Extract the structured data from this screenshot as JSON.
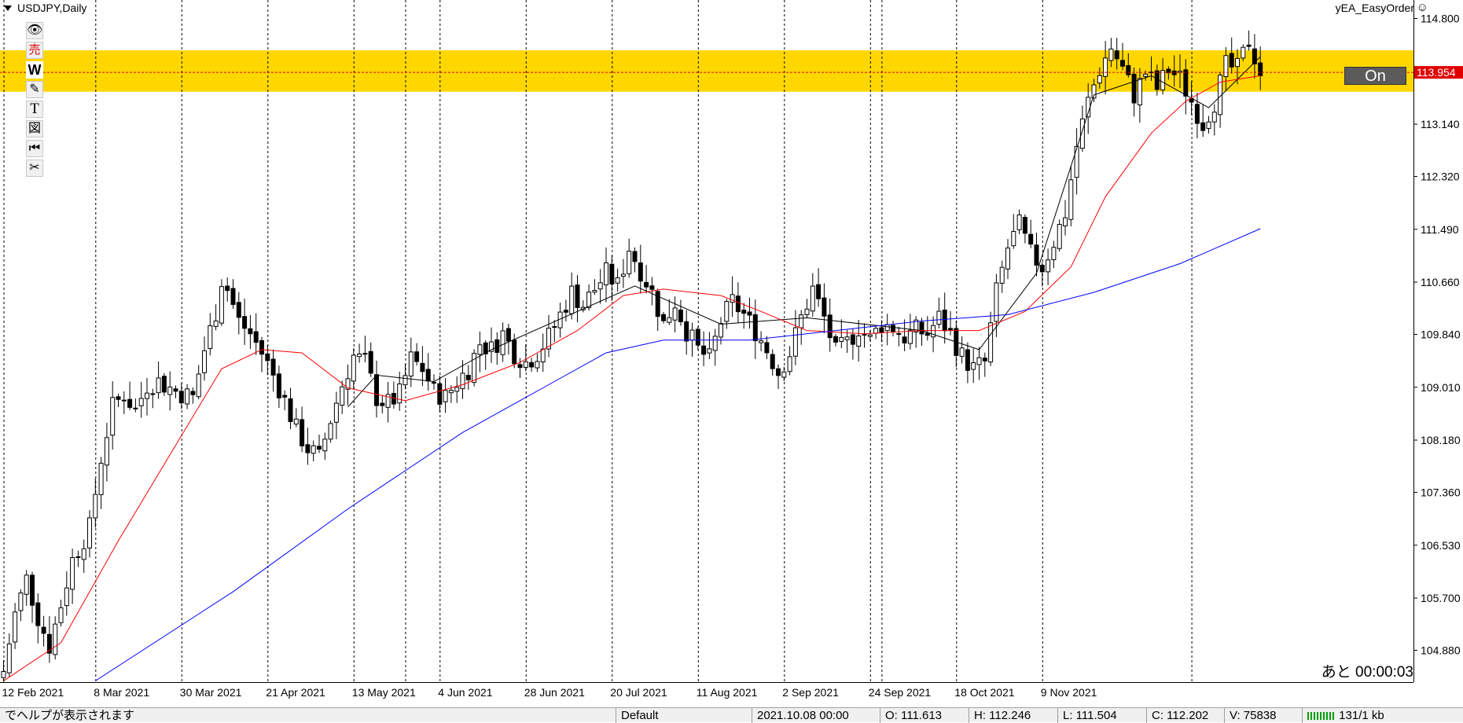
{
  "window": {
    "title": "USDJPY,Daily",
    "ea_name": "yEA_EasyOrder",
    "ea_icon": "smiley-icon",
    "on_button_label": "On",
    "countdown": "あと 00:00:03",
    "current_price_label": "113.954"
  },
  "toolbar": {
    "items": [
      {
        "name": "eye-icon",
        "glyph": "👁"
      },
      {
        "name": "sell-icon",
        "glyph": "売"
      },
      {
        "name": "w-icon",
        "glyph": "W"
      },
      {
        "name": "pencil-icon",
        "glyph": "✎"
      },
      {
        "name": "text-icon",
        "glyph": "T"
      },
      {
        "name": "picture-icon",
        "glyph": "図"
      },
      {
        "name": "rewind-icon",
        "glyph": "⏮"
      },
      {
        "name": "scissors-icon",
        "glyph": "✂"
      }
    ]
  },
  "status_bar": {
    "help_text": "でヘルプが表示されます",
    "profile": "Default",
    "datetime": "2021.10.08 00:00",
    "open": "O: 111.613",
    "high": "H: 112.246",
    "low": "L: 111.504",
    "close": "C: 112.202",
    "volume": "V: 75838",
    "traffic": "131/1 kb"
  },
  "colors": {
    "zone": "#ffd700",
    "ma_fast": "#000000",
    "ma_mid": "#ff0000",
    "ma_slow": "#0000ff",
    "price_label_bg": "#e00000",
    "bull_candle": "#ffffff",
    "bear_candle": "#000000"
  },
  "chart_data": {
    "type": "candlestick",
    "symbol": "USDJPY",
    "timeframe": "Daily",
    "ylim": [
      104.38,
      115.09
    ],
    "y_ticks": [
      114.8,
      113.97,
      113.14,
      112.32,
      111.49,
      110.66,
      109.84,
      109.01,
      108.18,
      107.36,
      106.53,
      105.7,
      104.88
    ],
    "y_tick_labels": [
      "114.800",
      "",
      "113.140",
      "112.320",
      "111.490",
      "110.660",
      "109.840",
      "109.010",
      "108.180",
      "107.360",
      "106.530",
      "105.700",
      "104.880"
    ],
    "x_labels": [
      "12 Feb 2021",
      "8 Mar 2021",
      "30 Mar 2021",
      "21 Apr 2021",
      "13 May 2021",
      "4 Jun 2021",
      "28 Jun 2021",
      "20 Jul 2021",
      "11 Aug 2021",
      "2 Sep 2021",
      "24 Sep 2021",
      "18 Oct 2021",
      "9 Nov 2021"
    ],
    "current_price": 113.954,
    "zone": {
      "from": 113.65,
      "to": 114.3
    },
    "grid": "vertical-dashed",
    "anchors": [
      [
        0,
        104.55
      ],
      [
        2,
        105.45
      ],
      [
        4,
        106.0
      ],
      [
        6,
        105.4
      ],
      [
        8,
        104.95
      ],
      [
        10,
        105.6
      ],
      [
        12,
        106.3
      ],
      [
        15,
        106.8
      ],
      [
        17,
        107.9
      ],
      [
        19,
        108.7
      ],
      [
        21,
        108.9
      ],
      [
        23,
        108.65
      ],
      [
        25,
        109.05
      ],
      [
        27,
        109.1
      ],
      [
        30,
        108.95
      ],
      [
        33,
        108.85
      ],
      [
        35,
        109.6
      ],
      [
        37,
        110.2
      ],
      [
        38,
        110.7
      ],
      [
        39,
        110.55
      ],
      [
        41,
        110.05
      ],
      [
        43,
        109.85
      ],
      [
        45,
        109.55
      ],
      [
        47,
        109.2
      ],
      [
        49,
        108.8
      ],
      [
        51,
        108.35
      ],
      [
        53,
        108.05
      ],
      [
        55,
        107.9
      ],
      [
        57,
        108.5
      ],
      [
        59,
        109.05
      ],
      [
        61,
        109.5
      ],
      [
        63,
        109.4
      ],
      [
        65,
        108.85
      ],
      [
        67,
        108.75
      ],
      [
        69,
        108.9
      ],
      [
        71,
        109.45
      ],
      [
        73,
        109.3
      ],
      [
        75,
        108.95
      ],
      [
        77,
        108.85
      ],
      [
        79,
        109.1
      ],
      [
        81,
        109.3
      ],
      [
        83,
        109.7
      ],
      [
        85,
        109.6
      ],
      [
        87,
        109.85
      ],
      [
        89,
        109.55
      ],
      [
        91,
        109.4
      ],
      [
        93,
        109.55
      ],
      [
        95,
        109.8
      ],
      [
        97,
        110.15
      ],
      [
        99,
        110.5
      ],
      [
        101,
        110.3
      ],
      [
        103,
        110.55
      ],
      [
        105,
        110.8
      ],
      [
        107,
        110.6
      ],
      [
        109,
        111.2
      ],
      [
        111,
        110.85
      ],
      [
        113,
        110.5
      ],
      [
        115,
        110.0
      ],
      [
        117,
        110.35
      ],
      [
        119,
        109.9
      ],
      [
        121,
        109.6
      ],
      [
        123,
        109.45
      ],
      [
        125,
        110.05
      ],
      [
        127,
        110.35
      ],
      [
        129,
        110.15
      ],
      [
        131,
        109.9
      ],
      [
        133,
        109.6
      ],
      [
        135,
        109.25
      ],
      [
        137,
        109.55
      ],
      [
        139,
        110.1
      ],
      [
        141,
        110.55
      ],
      [
        143,
        110.1
      ],
      [
        145,
        109.55
      ],
      [
        147,
        109.7
      ],
      [
        149,
        109.95
      ],
      [
        151,
        109.75
      ],
      [
        153,
        110.0
      ],
      [
        155,
        109.95
      ],
      [
        157,
        109.8
      ],
      [
        159,
        109.9
      ],
      [
        161,
        109.85
      ],
      [
        163,
        110.1
      ],
      [
        165,
        109.85
      ],
      [
        167,
        109.5
      ],
      [
        169,
        109.3
      ],
      [
        171,
        109.4
      ],
      [
        173,
        110.5
      ],
      [
        175,
        111.2
      ],
      [
        177,
        111.55
      ],
      [
        179,
        111.1
      ],
      [
        181,
        110.9
      ],
      [
        183,
        111.3
      ],
      [
        185,
        111.75
      ],
      [
        187,
        112.8
      ],
      [
        189,
        113.5
      ],
      [
        191,
        114.0
      ],
      [
        193,
        114.35
      ],
      [
        195,
        114.0
      ],
      [
        197,
        113.6
      ],
      [
        199,
        113.95
      ],
      [
        201,
        113.7
      ],
      [
        203,
        114.0
      ],
      [
        205,
        113.85
      ],
      [
        207,
        113.5
      ],
      [
        209,
        113.15
      ],
      [
        211,
        113.5
      ],
      [
        213,
        114.05
      ],
      [
        215,
        114.0
      ],
      [
        217,
        114.45
      ],
      [
        219,
        113.954
      ]
    ],
    "series": [
      {
        "name": "fast MA",
        "values": [
          [
            60,
            108.7
          ],
          [
            65,
            109.2
          ],
          [
            75,
            109.1
          ],
          [
            85,
            109.6
          ],
          [
            100,
            110.2
          ],
          [
            110,
            110.6
          ],
          [
            125,
            110.0
          ],
          [
            140,
            110.1
          ],
          [
            160,
            109.9
          ],
          [
            170,
            109.6
          ],
          [
            180,
            110.8
          ],
          [
            190,
            113.6
          ],
          [
            200,
            113.9
          ],
          [
            210,
            113.4
          ],
          [
            219,
            114.2
          ]
        ]
      },
      {
        "name": "mid MA",
        "values": [
          [
            0,
            104.4
          ],
          [
            10,
            105.0
          ],
          [
            20,
            106.6
          ],
          [
            30,
            108.1
          ],
          [
            38,
            109.3
          ],
          [
            45,
            109.6
          ],
          [
            52,
            109.55
          ],
          [
            60,
            109.0
          ],
          [
            70,
            108.8
          ],
          [
            80,
            109.05
          ],
          [
            90,
            109.4
          ],
          [
            100,
            109.9
          ],
          [
            108,
            110.45
          ],
          [
            115,
            110.55
          ],
          [
            125,
            110.45
          ],
          [
            132,
            110.2
          ],
          [
            140,
            109.9
          ],
          [
            150,
            109.85
          ],
          [
            160,
            109.9
          ],
          [
            170,
            109.9
          ],
          [
            178,
            110.2
          ],
          [
            186,
            110.9
          ],
          [
            192,
            112.0
          ],
          [
            200,
            113.0
          ],
          [
            206,
            113.5
          ],
          [
            212,
            113.8
          ],
          [
            219,
            113.9
          ]
        ]
      },
      {
        "name": "slow MA",
        "values": [
          [
            16,
            104.4
          ],
          [
            40,
            105.8
          ],
          [
            60,
            107.1
          ],
          [
            80,
            108.3
          ],
          [
            95,
            109.05
          ],
          [
            105,
            109.55
          ],
          [
            115,
            109.75
          ],
          [
            130,
            109.75
          ],
          [
            145,
            109.9
          ],
          [
            160,
            110.05
          ],
          [
            175,
            110.15
          ],
          [
            190,
            110.5
          ],
          [
            205,
            110.95
          ],
          [
            219,
            111.5
          ]
        ]
      }
    ]
  }
}
